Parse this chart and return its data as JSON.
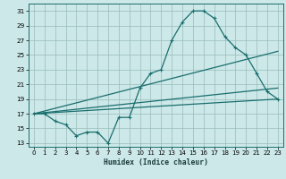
{
  "xlabel": "Humidex (Indice chaleur)",
  "xlim": [
    -0.5,
    23.5
  ],
  "ylim": [
    12.5,
    32
  ],
  "yticks": [
    13,
    15,
    17,
    19,
    21,
    23,
    25,
    27,
    29,
    31
  ],
  "xticks": [
    0,
    1,
    2,
    3,
    4,
    5,
    6,
    7,
    8,
    9,
    10,
    11,
    12,
    13,
    14,
    15,
    16,
    17,
    18,
    19,
    20,
    21,
    22,
    23
  ],
  "bg_color": "#cce8e8",
  "line_color": "#1a6e6e",
  "grid_color": "#99bbbb",
  "line1_x": [
    0,
    1,
    2,
    3,
    4,
    5,
    6,
    7,
    8,
    9,
    10,
    11,
    12,
    13,
    14,
    15,
    16,
    17,
    18,
    19,
    20,
    21,
    22,
    23
  ],
  "line1_y": [
    17.0,
    17.0,
    16.0,
    15.5,
    14.0,
    14.5,
    14.5,
    13.0,
    16.5,
    16.5,
    20.5,
    22.5,
    23.0,
    27.0,
    29.5,
    31.0,
    31.0,
    30.0,
    27.5,
    26.0,
    25.0,
    22.5,
    20.0,
    19.0
  ],
  "line2_x": [
    0,
    23
  ],
  "line2_y": [
    17.0,
    25.5
  ],
  "line3_x": [
    0,
    23
  ],
  "line3_y": [
    17.0,
    20.5
  ],
  "line4_x": [
    0,
    23
  ],
  "line4_y": [
    17.0,
    19.0
  ]
}
